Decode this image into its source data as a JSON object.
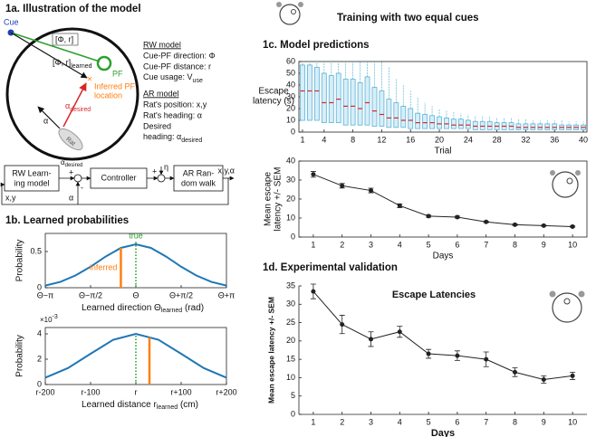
{
  "panel_a": {
    "title": "1a. Illustration of the model",
    "cue": "Cue",
    "phi_r": "[Φ, r]",
    "pf": "PF",
    "phi_r_learned": {
      "base": "[Φ, r]",
      "sub": "learned"
    },
    "inferred": [
      "Inferred PF",
      "location"
    ],
    "alpha_desired": {
      "base": "α",
      "sub": "desired"
    },
    "alpha": "α",
    "rat": "Rat",
    "rw_model": {
      "heading": "RW model",
      "lines": [
        "Cue-PF direction: Φ",
        "Cue-PF distance: r"
      ],
      "usage": {
        "base": "Cue usage: V",
        "sub": "use"
      }
    },
    "ar_model": {
      "heading": "AR model",
      "lines": [
        "Rat's position: x,y",
        "Rat's heading: α",
        "Desired"
      ],
      "desired": {
        "base": "heading: α",
        "sub": "desired"
      }
    },
    "block": {
      "rw": [
        "RW Learn-",
        "ing model"
      ],
      "controller": "Controller",
      "ar": [
        "AR Ran-",
        "dom walk"
      ],
      "alpha_desired": {
        "base": "α",
        "sub": "desired"
      },
      "minus": "-",
      "plus": "+",
      "plus2": "+",
      "eta": "η",
      "output": "x,y,α",
      "feedback_xy": "x,y",
      "feedback_alpha": "α"
    }
  },
  "panel_b": {
    "title": "1b. Learned probabilities"
  },
  "panel_c": {
    "header": "Training with two equal cues",
    "title": "1c. Model predictions"
  },
  "panel_d": {
    "title": "1d. Experimental validation"
  },
  "chart_data": [
    {
      "type": "line",
      "ylabel": "Probability",
      "xlabel": {
        "base": "Learned direction Θ",
        "sub": "learned",
        "tail": " (rad)"
      },
      "x": [
        -3.14,
        -2.62,
        -2.09,
        -1.57,
        -1.05,
        -0.52,
        0,
        0.52,
        1.05,
        1.57,
        2.09,
        2.62,
        3.14
      ],
      "values": [
        0.03,
        0.08,
        0.17,
        0.29,
        0.43,
        0.55,
        0.6,
        0.55,
        0.43,
        0.29,
        0.17,
        0.08,
        0.03
      ],
      "color": "#1f77b4",
      "xlim": [
        -3.14159,
        3.14159
      ],
      "xticks": [
        {
          "value": -3.14159,
          "label": "Θ−π"
        },
        {
          "value": -1.5708,
          "label": "Θ−π/2"
        },
        {
          "value": 0,
          "label": "Θ"
        },
        {
          "value": 1.5708,
          "label": "Θ+π/2"
        },
        {
          "value": 3.14159,
          "label": "Θ+π"
        }
      ],
      "ylim": [
        0,
        0.75
      ],
      "yticks": [
        0,
        0.5
      ],
      "markers": [
        {
          "name": "true",
          "x": 0,
          "color": "#2ca02c",
          "style": "dotted"
        },
        {
          "name": "inferred",
          "x": -0.52,
          "color": "#ff7f0e",
          "style": "solid"
        }
      ]
    },
    {
      "type": "line",
      "ylabel": "Probability",
      "scale_label": {
        "base": "×10",
        "sup": "-3"
      },
      "xlabel": {
        "base": "Learned distance r",
        "sub": "learned",
        "tail": " (cm)"
      },
      "x": [
        -200,
        -150,
        -100,
        -50,
        0,
        50,
        100,
        150,
        200
      ],
      "values": [
        0.54,
        1.3,
        2.43,
        3.53,
        4,
        3.53,
        2.43,
        1.3,
        0.54
      ],
      "color": "#1f77b4",
      "xlim": [
        -200,
        200
      ],
      "xticks": [
        {
          "value": -200,
          "label": "r-200"
        },
        {
          "value": -100,
          "label": "r-100"
        },
        {
          "value": 0,
          "label": "r"
        },
        {
          "value": 100,
          "label": "r+100"
        },
        {
          "value": 200,
          "label": "r+200"
        }
      ],
      "ylim": [
        0,
        4.5
      ],
      "yticks": [
        0,
        2,
        4
      ],
      "markers": [
        {
          "x": 0,
          "color": "#2ca02c",
          "style": "dotted"
        },
        {
          "x": 30,
          "color": "#ff7f0e",
          "style": "solid"
        }
      ]
    },
    {
      "type": "box",
      "xlabel": "Trial",
      "ylabel": [
        "Escape",
        "latency (s)"
      ],
      "x": [
        1,
        2,
        3,
        4,
        5,
        6,
        7,
        8,
        9,
        10,
        11,
        12,
        13,
        14,
        15,
        16,
        17,
        18,
        19,
        20,
        21,
        22,
        23,
        24,
        25,
        26,
        27,
        28,
        29,
        30,
        31,
        32,
        33,
        34,
        35,
        36,
        37,
        38,
        39,
        40
      ],
      "median": [
        35,
        35,
        35,
        25,
        25,
        28,
        22,
        22,
        20,
        25,
        18,
        15,
        12,
        12,
        10,
        10,
        8,
        8,
        8,
        7,
        7,
        6,
        6,
        6,
        5,
        5,
        5,
        5,
        5,
        5,
        4,
        4,
        4,
        4,
        4,
        4,
        4,
        4,
        4,
        4
      ],
      "q1": [
        10,
        10,
        10,
        8,
        8,
        8,
        6,
        6,
        6,
        6,
        5,
        5,
        4,
        4,
        4,
        3,
        3,
        3,
        3,
        3,
        3,
        3,
        3,
        3,
        2,
        2,
        2,
        2,
        2,
        2,
        2,
        2,
        2,
        2,
        2,
        2,
        2,
        2,
        2,
        2
      ],
      "q3": [
        57,
        57,
        55,
        50,
        48,
        50,
        45,
        45,
        42,
        47,
        38,
        35,
        28,
        25,
        22,
        20,
        16,
        15,
        14,
        13,
        12,
        11,
        11,
        10,
        9,
        9,
        9,
        8,
        8,
        8,
        7,
        7,
        7,
        7,
        7,
        7,
        6,
        6,
        6,
        6
      ],
      "whisker_high": [
        60,
        60,
        60,
        60,
        60,
        60,
        60,
        60,
        60,
        60,
        60,
        60,
        55,
        45,
        40,
        35,
        30,
        25,
        22,
        20,
        18,
        17,
        16,
        15,
        14,
        14,
        13,
        12,
        12,
        12,
        11,
        11,
        10,
        10,
        10,
        10,
        10,
        9,
        9,
        9
      ],
      "color": "#5ab4d8",
      "median_color": "#d62728",
      "xlim": [
        0.5,
        40.5
      ],
      "xticks": [
        1,
        4,
        8,
        12,
        16,
        20,
        24,
        28,
        32,
        36,
        40
      ],
      "ylim": [
        0,
        60
      ],
      "yticks": [
        0,
        10,
        20,
        30,
        40,
        50,
        60
      ]
    },
    {
      "type": "errorbar",
      "xlabel": "Days",
      "ylabel": [
        "Mean escape",
        "latency +/- SEM"
      ],
      "x": [
        1,
        2,
        3,
        4,
        5,
        6,
        7,
        8,
        9,
        10
      ],
      "values": [
        33,
        27,
        24.5,
        16.5,
        11,
        10.5,
        8,
        6.5,
        6,
        5.5
      ],
      "errors": [
        1.5,
        1.2,
        1.2,
        1,
        0.6,
        0.5,
        0.4,
        0.4,
        0.3,
        0.3
      ],
      "color": "#222222",
      "xlim": [
        0.5,
        10.5
      ],
      "xticks": [
        1,
        2,
        3,
        4,
        5,
        6,
        7,
        8,
        9,
        10
      ],
      "ylim": [
        0,
        40
      ],
      "yticks": [
        0,
        10,
        20,
        30,
        40
      ]
    },
    {
      "type": "errorbar",
      "title": "Escape Latencies",
      "xlabel": "Days",
      "ylabel": "Mean escape latency +/- SEM",
      "x": [
        1,
        2,
        3,
        4,
        5,
        6,
        7,
        8,
        9,
        10
      ],
      "values": [
        33.5,
        24.5,
        20.5,
        22.5,
        16.5,
        16,
        15,
        11.5,
        9.5,
        10.5
      ],
      "errors": [
        2,
        2.5,
        2,
        1.5,
        1.2,
        1.3,
        2,
        1.2,
        1,
        1
      ],
      "color": "#222222",
      "xlim": [
        0.5,
        10.5
      ],
      "xticks": [
        1,
        2,
        3,
        4,
        5,
        6,
        7,
        8,
        9,
        10
      ],
      "ylim": [
        0,
        35
      ],
      "yticks": [
        0,
        5,
        10,
        15,
        20,
        25,
        30,
        35
      ]
    }
  ]
}
